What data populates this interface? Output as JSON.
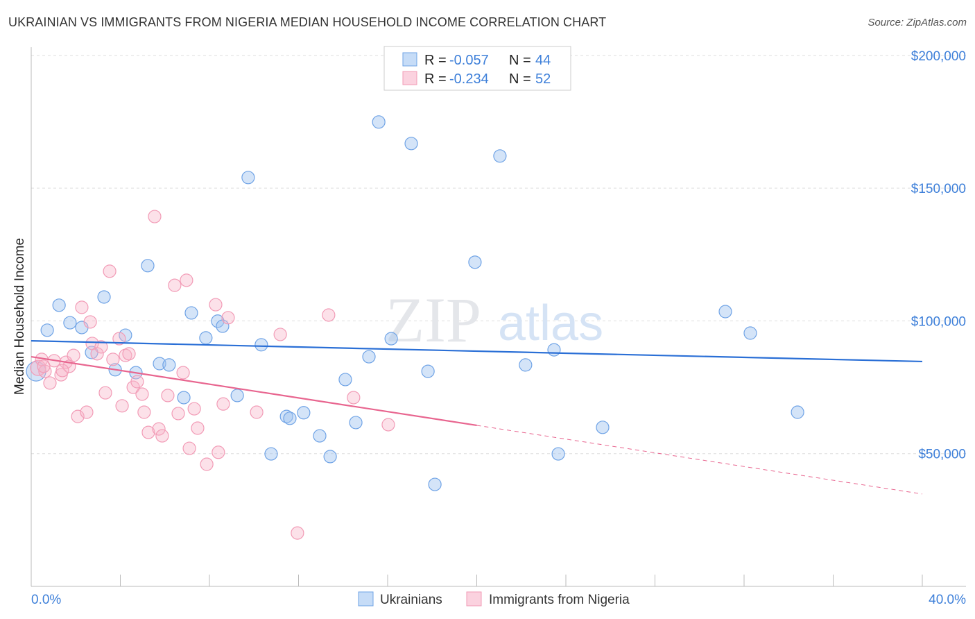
{
  "title": "UKRAINIAN VS IMMIGRANTS FROM NIGERIA MEDIAN HOUSEHOLD INCOME CORRELATION CHART",
  "source": "Source: ZipAtlas.com",
  "watermark": {
    "zip": "ZIP",
    "atlas": "atlas"
  },
  "chart_data": {
    "type": "scatter",
    "title": "UKRAINIAN VS IMMIGRANTS FROM NIGERIA MEDIAN HOUSEHOLD INCOME CORRELATION CHART",
    "xlabel": "",
    "ylabel": "Median Household Income",
    "xlim": [
      0,
      40
    ],
    "ylim": [
      0,
      210000
    ],
    "x_tick_labels": [
      "0.0%",
      "40.0%"
    ],
    "y_ticks": [
      50000,
      100000,
      150000,
      200000
    ],
    "y_tick_labels": [
      "$50,000",
      "$100,000",
      "$150,000",
      "$200,000"
    ],
    "grid": true,
    "legend_placement": "top-center",
    "legend": [
      {
        "r_label": "R =",
        "r": "-0.057",
        "n_label": "N =",
        "n": "44"
      },
      {
        "r_label": "R =",
        "r": "-0.234",
        "n_label": "N =",
        "n": "52"
      }
    ],
    "series": [
      {
        "name": "Ukrainians",
        "color": "#6fa3e6",
        "line_color": "#2a6fd6",
        "trend": {
          "x": [
            0,
            40
          ],
          "y": [
            92500,
            84700
          ],
          "solid_until": 40
        },
        "points": [
          [
            0.22,
            81000
          ],
          [
            0.72,
            96500
          ],
          [
            1.25,
            105900
          ],
          [
            1.74,
            99300
          ],
          [
            2.27,
            97500
          ],
          [
            2.71,
            88100
          ],
          [
            3.27,
            109000
          ],
          [
            3.77,
            81600
          ],
          [
            4.23,
            94600
          ],
          [
            4.7,
            80500
          ],
          [
            5.23,
            120800
          ],
          [
            5.76,
            83900
          ],
          [
            6.19,
            83400
          ],
          [
            6.85,
            71100
          ],
          [
            7.19,
            103000
          ],
          [
            7.84,
            93600
          ],
          [
            8.37,
            99900
          ],
          [
            8.59,
            98000
          ],
          [
            9.25,
            71900
          ],
          [
            9.74,
            154000
          ],
          [
            10.33,
            91000
          ],
          [
            10.77,
            49900
          ],
          [
            11.46,
            64000
          ],
          [
            11.61,
            63300
          ],
          [
            12.23,
            65400
          ],
          [
            12.95,
            56700
          ],
          [
            13.42,
            48900
          ],
          [
            14.1,
            77900
          ],
          [
            14.57,
            61700
          ],
          [
            15.16,
            86500
          ],
          [
            15.6,
            174900
          ],
          [
            16.16,
            93300
          ],
          [
            17.06,
            166800
          ],
          [
            17.81,
            81000
          ],
          [
            18.12,
            38400
          ],
          [
            19.92,
            122100
          ],
          [
            21.04,
            162100
          ],
          [
            22.19,
            83400
          ],
          [
            23.47,
            89100
          ],
          [
            23.66,
            49900
          ],
          [
            25.65,
            59900
          ],
          [
            31.16,
            103500
          ],
          [
            32.28,
            95400
          ],
          [
            34.4,
            65600
          ]
        ]
      },
      {
        "name": "Immigrants from Nigeria",
        "color": "#f29bb6",
        "line_color": "#e8658f",
        "trend": {
          "x": [
            0,
            40
          ],
          "y": [
            86500,
            34800
          ],
          "solid_until": 20
        },
        "points": [
          [
            0.31,
            82300
          ],
          [
            0.47,
            85500
          ],
          [
            0.62,
            81000
          ],
          [
            0.84,
            76600
          ],
          [
            1.03,
            85000
          ],
          [
            1.34,
            79700
          ],
          [
            1.56,
            84400
          ],
          [
            1.71,
            82900
          ],
          [
            1.9,
            87000
          ],
          [
            2.09,
            64000
          ],
          [
            2.27,
            105100
          ],
          [
            2.49,
            65600
          ],
          [
            2.65,
            99600
          ],
          [
            2.74,
            91500
          ],
          [
            2.96,
            87600
          ],
          [
            3.14,
            90200
          ],
          [
            3.33,
            72900
          ],
          [
            3.52,
            118700
          ],
          [
            3.67,
            85500
          ],
          [
            3.95,
            93300
          ],
          [
            4.08,
            68000
          ],
          [
            4.23,
            87000
          ],
          [
            4.39,
            87600
          ],
          [
            4.58,
            75000
          ],
          [
            4.76,
            77100
          ],
          [
            4.98,
            72400
          ],
          [
            5.07,
            65600
          ],
          [
            5.26,
            58000
          ],
          [
            5.54,
            139300
          ],
          [
            5.73,
            59300
          ],
          [
            5.88,
            56700
          ],
          [
            6.13,
            71900
          ],
          [
            6.44,
            113400
          ],
          [
            6.6,
            65100
          ],
          [
            6.82,
            80500
          ],
          [
            6.97,
            115300
          ],
          [
            7.1,
            52000
          ],
          [
            7.32,
            66900
          ],
          [
            7.47,
            59600
          ],
          [
            7.88,
            46000
          ],
          [
            8.28,
            106100
          ],
          [
            8.4,
            50500
          ],
          [
            8.62,
            68700
          ],
          [
            8.84,
            101200
          ],
          [
            10.12,
            65600
          ],
          [
            11.18,
            94900
          ],
          [
            11.95,
            20100
          ],
          [
            13.35,
            102200
          ],
          [
            14.47,
            71100
          ],
          [
            16.03,
            60900
          ],
          [
            1.4,
            81300
          ],
          [
            0.56,
            82900
          ]
        ]
      }
    ]
  }
}
